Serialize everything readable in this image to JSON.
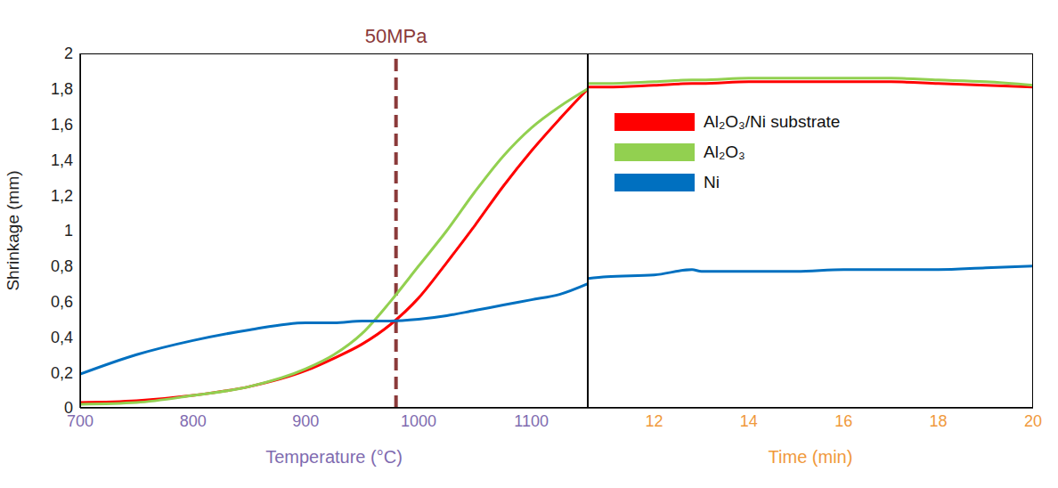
{
  "chart_data": [
    {
      "type": "line",
      "x_label": "Temperature (°C)",
      "y_label": "Shrinkage (mm)",
      "x": [
        700,
        750,
        800,
        850,
        900,
        925,
        950,
        975,
        1000,
        1025,
        1050,
        1075,
        1100,
        1125,
        1150
      ],
      "xlim": [
        700,
        1150
      ],
      "xticks": [
        700,
        800,
        900,
        1000,
        1100
      ],
      "ylim": [
        0,
        2
      ],
      "yticks": [
        0,
        {
          "value": 0.2,
          "label": "0,2"
        },
        {
          "value": 0.4,
          "label": "0,4"
        },
        {
          "value": 0.6,
          "label": "0,6"
        },
        {
          "value": 0.8,
          "label": "0,8"
        },
        1,
        {
          "value": 1.2,
          "label": "1,2"
        },
        {
          "value": 1.4,
          "label": "1,4"
        },
        {
          "value": 1.6,
          "label": "1,6"
        },
        {
          "value": 1.8,
          "label": "1,8"
        },
        2
      ],
      "grid": false,
      "annotations": [
        {
          "text": "50MPa",
          "x": 980,
          "color": "#8b3a3a",
          "line_style": "dashed"
        }
      ],
      "series": [
        {
          "name": "Al₂O₃/Ni substrate",
          "color": "#ff0000",
          "values": [
            0.03,
            0.04,
            0.07,
            0.12,
            0.21,
            0.28,
            0.36,
            0.47,
            0.62,
            0.82,
            1.03,
            1.25,
            1.45,
            1.63,
            1.8
          ]
        },
        {
          "name": "Al₂O₃",
          "color": "#92d050",
          "values": [
            0.02,
            0.03,
            0.07,
            0.12,
            0.22,
            0.3,
            0.42,
            0.6,
            0.8,
            1.0,
            1.22,
            1.42,
            1.58,
            1.7,
            1.8
          ]
        },
        {
          "name": "Ni",
          "color": "#0070c0",
          "values": [
            0.19,
            0.3,
            0.38,
            0.44,
            0.48,
            0.48,
            0.49,
            0.49,
            0.5,
            0.52,
            0.55,
            0.58,
            0.61,
            0.64,
            0.7
          ]
        }
      ]
    },
    {
      "type": "line",
      "x_label": "Time (min)",
      "x": [
        10.6,
        11,
        12,
        12.8,
        13,
        14,
        15,
        16,
        17,
        18,
        19,
        20
      ],
      "xlim": [
        10.6,
        20
      ],
      "xticks": [
        12,
        14,
        16,
        18,
        20
      ],
      "ylim": [
        0,
        2
      ],
      "tick_labels": "x",
      "grid": false,
      "legend": "upper left",
      "series": [
        {
          "name": "Al₂O₃/Ni substrate",
          "color": "#ff0000",
          "values": [
            1.81,
            1.81,
            1.82,
            1.83,
            1.83,
            1.84,
            1.84,
            1.84,
            1.84,
            1.83,
            1.82,
            1.81
          ]
        },
        {
          "name": "Al₂O₃",
          "color": "#92d050",
          "values": [
            1.83,
            1.83,
            1.84,
            1.85,
            1.85,
            1.86,
            1.86,
            1.86,
            1.86,
            1.85,
            1.84,
            1.82
          ]
        },
        {
          "name": "Ni",
          "color": "#0070c0",
          "values": [
            0.73,
            0.74,
            0.75,
            0.78,
            0.77,
            0.77,
            0.77,
            0.78,
            0.78,
            0.78,
            0.79,
            0.8
          ]
        }
      ]
    }
  ]
}
